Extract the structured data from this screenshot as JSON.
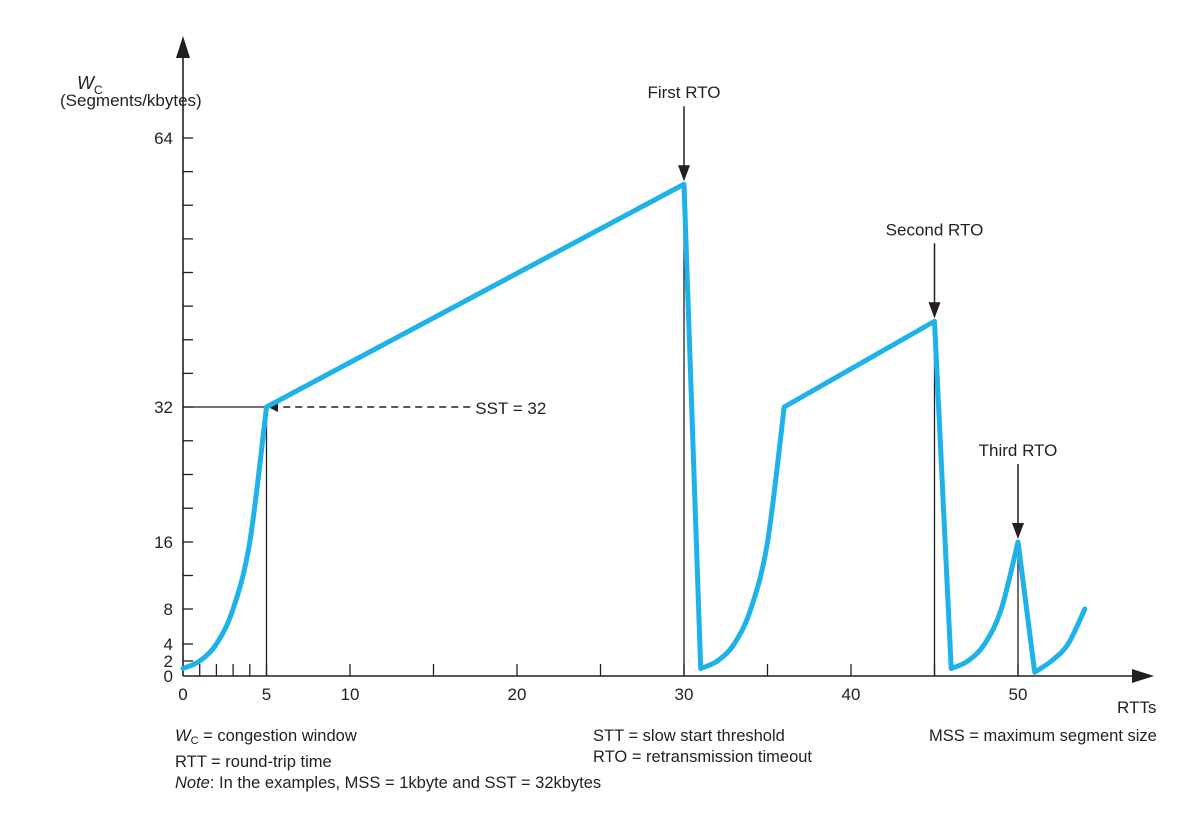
{
  "chart_data": {
    "type": "line",
    "ylabel_symbol": "W",
    "ylabel_subscript": "C",
    "ylabel_units": "(Segments/kbytes)",
    "xlabel": "RTTs",
    "x_tick_labels": [
      {
        "x": 0,
        "label": "0"
      },
      {
        "x": 5,
        "label": "5"
      },
      {
        "x": 10,
        "label": "10"
      },
      {
        "x": 20,
        "label": "20"
      },
      {
        "x": 30,
        "label": "30"
      },
      {
        "x": 40,
        "label": "40"
      },
      {
        "x": 50,
        "label": "50"
      }
    ],
    "y_tick_labels": [
      {
        "y": 0,
        "label": "0"
      },
      {
        "y": 2,
        "label": "2"
      },
      {
        "y": 4,
        "label": "4"
      },
      {
        "y": 8,
        "label": "8"
      },
      {
        "y": 16,
        "label": "16"
      },
      {
        "y": 32,
        "label": "32"
      },
      {
        "y": 64,
        "label": "64"
      }
    ],
    "xlim": [
      0,
      57
    ],
    "ylim": [
      0,
      69
    ],
    "series": [
      {
        "color": "#1fb2e9",
        "points": [
          [
            0,
            1
          ],
          [
            1,
            2
          ],
          [
            2,
            4
          ],
          [
            3,
            8
          ],
          [
            4,
            16
          ],
          [
            5,
            32
          ],
          [
            30,
            58.5
          ],
          [
            31,
            1
          ],
          [
            32,
            2
          ],
          [
            33,
            4
          ],
          [
            34,
            8
          ],
          [
            35,
            16
          ],
          [
            36,
            32
          ],
          [
            45,
            42.2
          ],
          [
            46,
            1
          ],
          [
            47,
            2
          ],
          [
            48,
            4
          ],
          [
            49,
            8
          ],
          [
            50,
            16
          ],
          [
            51,
            0.5
          ],
          [
            52,
            2
          ],
          [
            53,
            4
          ],
          [
            54,
            8
          ]
        ]
      }
    ],
    "annotations": [
      {
        "label": "First RTO",
        "x": 30,
        "y": 58.5
      },
      {
        "label": "Second RTO",
        "x": 45,
        "y": 42.2
      },
      {
        "label": "Third RTO",
        "x": 50,
        "y": 16
      }
    ],
    "threshold_label": "SST = 32",
    "threshold_value": 32,
    "drop_lines_x": [
      5,
      30,
      45,
      50
    ],
    "grid": false,
    "legend_items": {
      "wc_symbol": "W",
      "wc_subscript": "C",
      "wc_text": " = congestion window",
      "rtt": "RTT = round-trip time",
      "note_italic": "Note",
      "note_text": ": In the examples, MSS = 1kbyte and SST = 32kbytes",
      "stt": "STT = slow start threshold",
      "rto": "RTO = retransmission timeout",
      "mss": "MSS = maximum segment size"
    }
  }
}
